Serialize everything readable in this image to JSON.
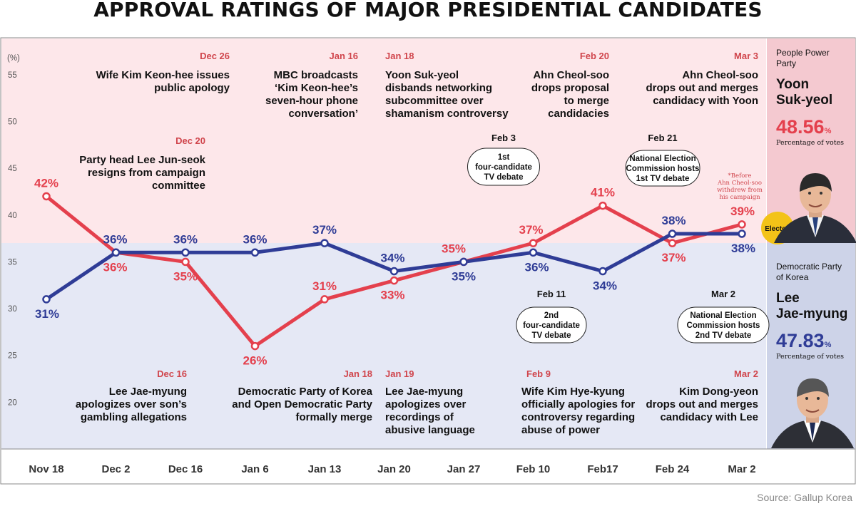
{
  "chart_data": {
    "type": "line",
    "title": "APPROVAL RATINGS OF MAJOR PRESIDENTIAL CANDIDATES",
    "ylabel": "(%)",
    "ylim": [
      15,
      55
    ],
    "yticks": [
      20,
      25,
      30,
      35,
      40,
      45,
      50,
      55
    ],
    "categories": [
      "Nov 18",
      "Dec 2",
      "Dec 16",
      "Jan 6",
      "Jan 13",
      "Jan 20",
      "Jan 27",
      "Feb 10",
      "Feb17",
      "Feb 24",
      "Mar 2"
    ],
    "series": [
      {
        "name": "Yoon Suk-yeol",
        "color": "#e4404d",
        "values": [
          42,
          36,
          35,
          26,
          31,
          33,
          35,
          37,
          41,
          37,
          39
        ],
        "labels": [
          "42%",
          "36%",
          "35%",
          "26%",
          "31%",
          "33%",
          "35%",
          "37%",
          "41%",
          "37%",
          "39%"
        ]
      },
      {
        "name": "Lee Jae-myung",
        "color": "#2f3c96",
        "values": [
          31,
          36,
          36,
          36,
          37,
          34,
          35,
          36,
          34,
          38,
          38
        ],
        "labels": [
          "31%",
          "36%",
          "36%",
          "36%",
          "37%",
          "34%",
          "35%",
          "36%",
          "34%",
          "38%",
          "38%"
        ]
      }
    ],
    "events_top": [
      {
        "date": "Dec 26",
        "lines": [
          "Wife Kim Keon-hee issues",
          "public apology"
        ]
      },
      {
        "date": "Dec 20",
        "lines": [
          "Party head Lee Jun-seok",
          "resigns from campaign",
          "committee"
        ]
      },
      {
        "date": "Jan 16",
        "lines": [
          "MBC broadcasts",
          "‘Kim Keon-hee’s",
          "seven-hour phone",
          "conversation’"
        ]
      },
      {
        "date": "Jan 18",
        "lines": [
          "Yoon Suk-yeol",
          "disbands networking",
          "subcommittee over",
          "shamanism controversy"
        ]
      },
      {
        "date": "Feb 20",
        "lines": [
          "Ahn Cheol-soo",
          "drops proposal",
          "to merge",
          "candidacies"
        ]
      },
      {
        "date": "Mar 3",
        "lines": [
          "Ahn Cheol-soo",
          "drops out and merges",
          "candidacy with Yoon"
        ]
      }
    ],
    "events_bottom": [
      {
        "date": "Dec 16",
        "lines": [
          "Lee Jae-myung",
          "apologizes over son’s",
          "gambling allegations"
        ]
      },
      {
        "date": "Jan 18",
        "lines": [
          "Democratic Party of Korea",
          "and Open Democratic Party",
          "formally merge"
        ]
      },
      {
        "date": "Jan 19",
        "lines": [
          "Lee Jae-myung",
          "apologizes over",
          "recordings of",
          "abusive language"
        ]
      },
      {
        "date": "Feb 9",
        "lines": [
          "Wife Kim Hye-kyung",
          "officially apologies for",
          "controversy regarding",
          "abuse of power"
        ]
      },
      {
        "date": "Mar 2",
        "lines": [
          "Kim Dong-yeon",
          "drops out and merges",
          "candidacy with Lee"
        ]
      }
    ],
    "debates": [
      {
        "date": "Feb 3",
        "lines": [
          "1st",
          "four-candidate",
          "TV debate"
        ]
      },
      {
        "date": "Feb 21",
        "lines": [
          "National Election",
          "Commission hosts",
          "1st TV debate"
        ]
      },
      {
        "date": "Feb 11",
        "lines": [
          "2nd",
          "four-candidate",
          "TV debate"
        ]
      },
      {
        "date": "Mar 2",
        "lines": [
          "National Election",
          "Commission hosts",
          "2nd TV debate"
        ]
      }
    ],
    "footnote": [
      "*Before",
      "Ahn Cheol-soo",
      "withdrew from",
      "his campaign"
    ],
    "elected_badge": "Elected",
    "candidates": [
      {
        "party": [
          "People Power",
          "Party"
        ],
        "name": [
          "Yoon",
          "Suk-yeol"
        ],
        "percent": "48.56",
        "pct_sign": "%",
        "caption": "Percentage of votes"
      },
      {
        "party": [
          "Democratic Party",
          "of Korea"
        ],
        "name": [
          "Lee",
          "Jae-myung"
        ],
        "percent": "47.83",
        "pct_sign": "%",
        "caption": "Percentage of votes"
      }
    ],
    "source": "Source: Gallup Korea",
    "colors": {
      "red": "#e4404d",
      "blue": "#2f3c96",
      "pink_bg": "#fde7ea",
      "blue_bg": "#e5e8f5",
      "panel_pink": "#f4c9d0",
      "panel_blue": "#cdd3e8",
      "gold": "#f3c318"
    }
  }
}
